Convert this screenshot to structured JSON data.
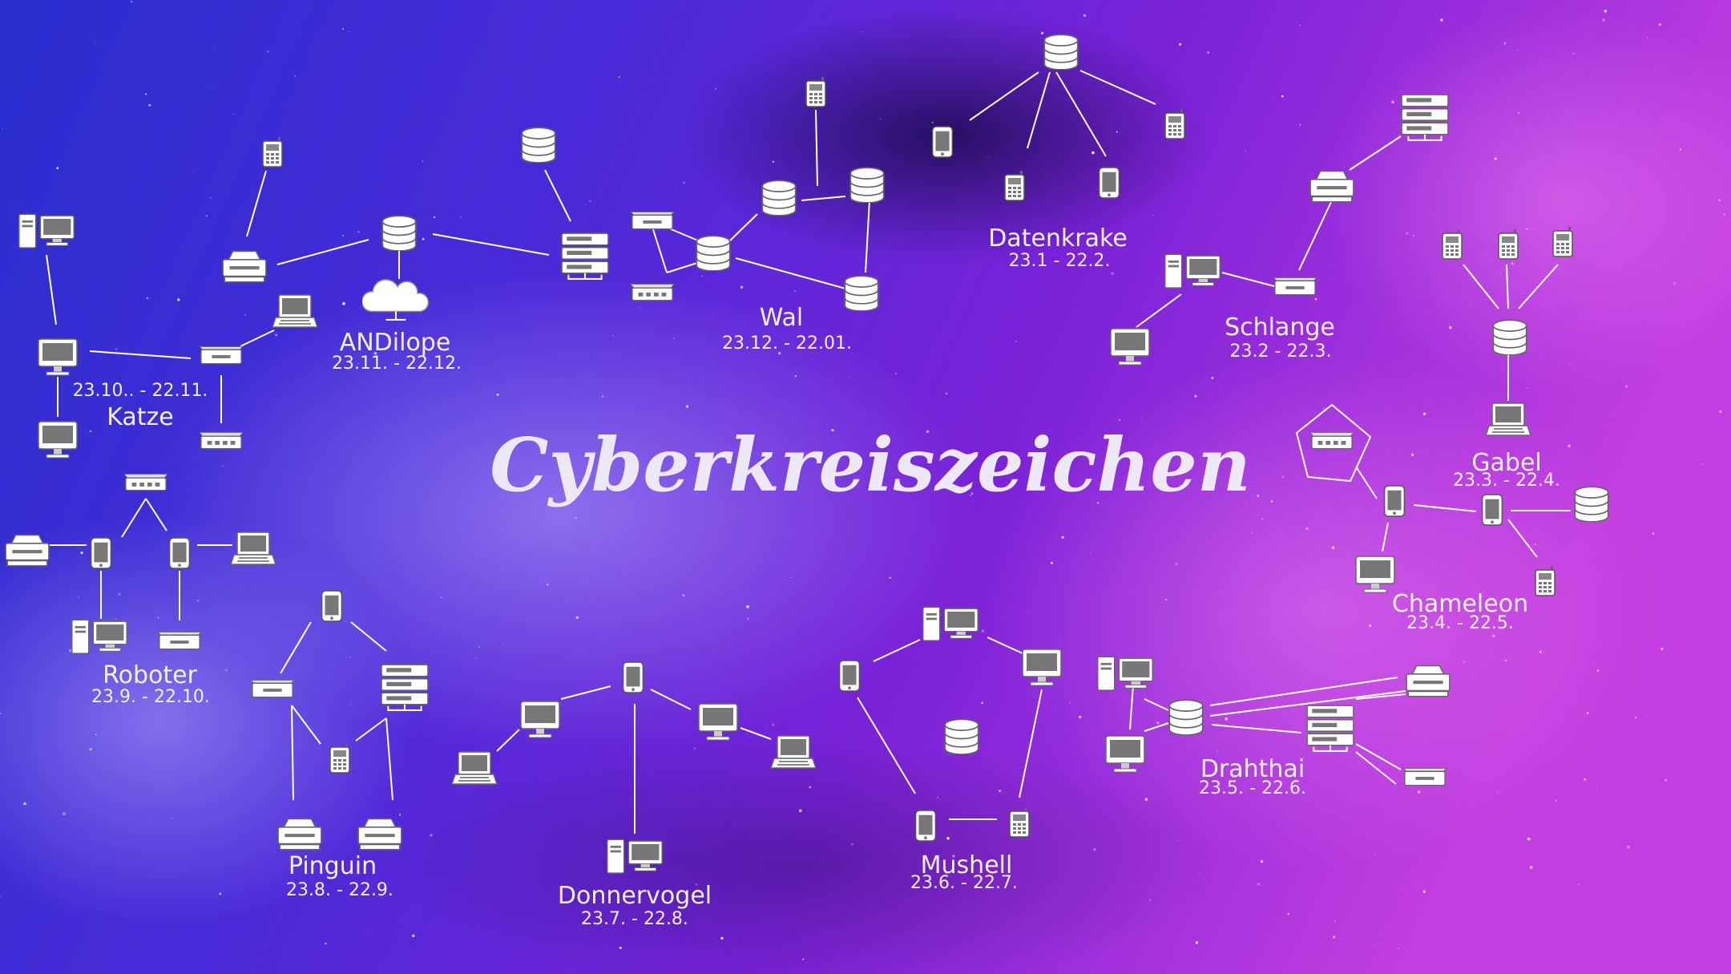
{
  "title": "Cyberkreiszeichen",
  "colors": {
    "line": "#ffffff",
    "device": "#ffffff",
    "sky_blue": "#2a2fd0",
    "sky_purple": "#7a22d8",
    "sky_magenta": "#c23ee0"
  },
  "icon_types": {
    "phone": "mobile-phone-icon",
    "smartphone": "smartphone-icon",
    "database": "database-icon",
    "server": "server-rack-icon",
    "printer": "printer-icon",
    "router": "router-icon",
    "monitor": "monitor-icon",
    "laptop": "laptop-icon",
    "pc": "desktop-pc-icon",
    "cloud": "cloud-icon"
  },
  "signs": [
    {
      "id": "katze",
      "name": "Katze",
      "date": "23.10.. - 22.11."
    },
    {
      "id": "andilope",
      "name": "ANDilope",
      "date": "23.11. - 22.12."
    },
    {
      "id": "wal",
      "name": "Wal",
      "date": "23.12. - 22.01."
    },
    {
      "id": "datenkrake",
      "name": "Datenkrake",
      "date": "23.1 - 22.2."
    },
    {
      "id": "schlange",
      "name": "Schlange",
      "date": "23.2 - 22.3."
    },
    {
      "id": "gabel",
      "name": "Gabel",
      "date": "23.3. - 22.4."
    },
    {
      "id": "chameleon",
      "name": "Chameleon",
      "date": "23.4. - 22.5."
    },
    {
      "id": "drahthai",
      "name": "Drahthai",
      "date": "23.5. - 22.6."
    },
    {
      "id": "mushell",
      "name": "Mushell",
      "date": "23.6. - 22.7."
    },
    {
      "id": "donnervogel",
      "name": "Donnervogel",
      "date": "23.7. - 22.8."
    },
    {
      "id": "pinguin",
      "name": "Pinguin",
      "date": "23.8. - 22.9."
    },
    {
      "id": "roboter",
      "name": "Roboter",
      "date": "23.9. - 22.10."
    }
  ]
}
